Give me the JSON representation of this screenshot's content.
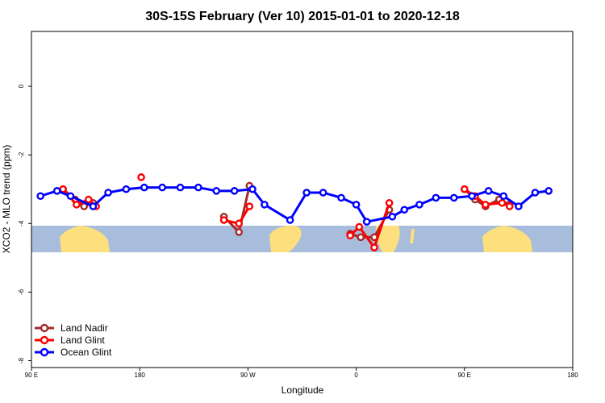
{
  "chart_data": {
    "type": "line",
    "title": "30S-15S February (Ver 10)   2015-01-01 to 2020-12-18",
    "xlabel": "Longitude",
    "ylabel": "XCO2 - MLO trend (ppm)",
    "xlim": [
      90,
      450
    ],
    "ylim": [
      -8.2,
      1.6
    ],
    "x_ticks": [
      {
        "value": 90,
        "label": "90 E"
      },
      {
        "value": 162,
        "label": "180"
      },
      {
        "value": 234,
        "label": "90 W"
      },
      {
        "value": 306,
        "label": "0"
      },
      {
        "value": 378,
        "label": "90 E"
      },
      {
        "value": 450,
        "label": "180"
      }
    ],
    "y_ticks": [
      {
        "value": 0,
        "label": "0"
      },
      {
        "value": -2,
        "label": "-2"
      },
      {
        "value": -4,
        "label": "-4"
      },
      {
        "value": -6,
        "label": "-6"
      },
      {
        "value": -8,
        "label": "-8"
      }
    ],
    "legend_position": "bottom-left",
    "series": [
      {
        "name": "Land Nadir",
        "color": "#a52a2a",
        "segments": [
          [
            [
              111,
              -3.0
            ],
            [
              119,
              -3.3
            ],
            [
              125,
              -3.5
            ],
            [
              131,
              -3.4
            ]
          ],
          [
            [
              218,
              -3.8
            ],
            [
              228,
              -4.25
            ],
            [
              235,
              -2.9
            ]
          ],
          [
            [
              302,
              -4.3
            ],
            [
              309,
              -4.4
            ],
            [
              318,
              -4.4
            ],
            [
              328,
              -3.6
            ]
          ],
          [
            [
              378,
              -3.0
            ],
            [
              385,
              -3.3
            ],
            [
              392,
              -3.5
            ],
            [
              401,
              -3.3
            ],
            [
              408,
              -3.45
            ]
          ]
        ]
      },
      {
        "name": "Land Glint",
        "color": "#ff0000",
        "segments": [
          [
            [
              111,
              -3.0
            ],
            [
              120,
              -3.45
            ],
            [
              128,
              -3.3
            ],
            [
              133,
              -3.5
            ]
          ],
          [
            [
              163,
              -2.65
            ]
          ],
          [
            [
              218,
              -3.9
            ],
            [
              228,
              -4.0
            ],
            [
              235,
              -3.5
            ]
          ],
          [
            [
              302,
              -4.35
            ],
            [
              308,
              -4.1
            ],
            [
              318,
              -4.7
            ],
            [
              328,
              -3.4
            ]
          ],
          [
            [
              378,
              -3.0
            ],
            [
              385,
              -3.2
            ],
            [
              392,
              -3.45
            ],
            [
              403,
              -3.4
            ],
            [
              408,
              -3.5
            ]
          ]
        ]
      },
      {
        "name": "Ocean Glint",
        "color": "#0000ff",
        "segments": [
          [
            [
              96,
              -3.2
            ],
            [
              107,
              -3.05
            ],
            [
              116,
              -3.2
            ],
            [
              131,
              -3.5
            ],
            [
              141,
              -3.1
            ],
            [
              153,
              -3.0
            ],
            [
              165,
              -2.95
            ],
            [
              177,
              -2.95
            ],
            [
              189,
              -2.95
            ],
            [
              201,
              -2.95
            ],
            [
              213,
              -3.05
            ],
            [
              225,
              -3.05
            ],
            [
              237,
              -3.0
            ],
            [
              245,
              -3.45
            ],
            [
              262,
              -3.9
            ],
            [
              273,
              -3.1
            ],
            [
              284,
              -3.1
            ],
            [
              296,
              -3.25
            ],
            [
              306,
              -3.45
            ],
            [
              313,
              -3.95
            ],
            [
              330,
              -3.8
            ],
            [
              338,
              -3.6
            ],
            [
              348,
              -3.45
            ],
            [
              359,
              -3.25
            ],
            [
              371,
              -3.25
            ],
            [
              383,
              -3.2
            ],
            [
              394,
              -3.05
            ],
            [
              404,
              -3.2
            ],
            [
              414,
              -3.5
            ],
            [
              425,
              -3.1
            ],
            [
              434,
              -3.05
            ]
          ]
        ]
      }
    ],
    "map_strip": {
      "ocean_color": "#a8bcdc",
      "land_color": "#fddf7d",
      "lat_range": [
        -30,
        -15
      ]
    }
  }
}
